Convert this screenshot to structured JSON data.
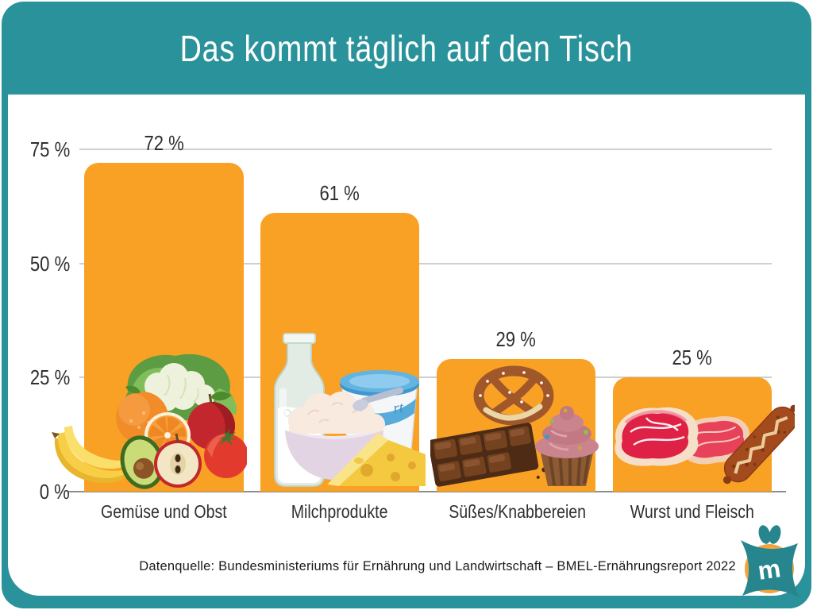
{
  "title": "Das kommt täglich auf den Tisch",
  "source_text": "Datenquelle: Bundesministeriums für Ernährung und Landwirtschaft – BMEL-Ernährungsreport 2022",
  "chart_data": {
    "type": "bar",
    "title": "Das kommt täglich auf den Tisch",
    "categories": [
      "Gemüse und Obst",
      "Milchprodukte",
      "Süßes/Knabbereien",
      "Wurst und Fleisch"
    ],
    "values": [
      72,
      61,
      29,
      25
    ],
    "value_labels": [
      "72 %",
      "61 %",
      "29 %",
      "25 %"
    ],
    "unit": "%",
    "ylim": [
      0,
      75
    ],
    "yticks": [
      0,
      25,
      50,
      75
    ],
    "ytick_labels": [
      "0 %",
      "25 %",
      "50 %",
      "75 %"
    ],
    "grid": true,
    "legend": false,
    "bar_color": "#F9A125",
    "bar_icons": [
      "fruits-and-vegetables",
      "dairy-products",
      "sweets-and-snacks",
      "meat-and-sausage"
    ]
  },
  "colors": {
    "frame_teal": "#2A929A",
    "bar_orange": "#F9A125",
    "panel_white": "#FFFFFF",
    "gridline": "#CFCFCF",
    "axis_line": "#8E8E8E",
    "label_text": "#2F2F2F",
    "title_text": "#FFFFFF"
  },
  "logo": {
    "letter": "m",
    "circle_color": "#F0A341",
    "star_color": "#27858D"
  }
}
